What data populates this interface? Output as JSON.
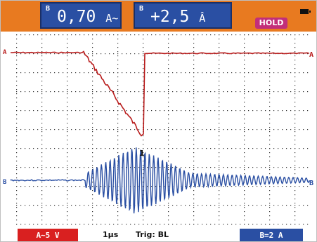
{
  "top_bar": {
    "channel_a": {
      "marker": "B",
      "value": "0,70",
      "unit": "A~"
    },
    "channel_b": {
      "marker": "B",
      "value": "+2,5",
      "unit": "Â"
    },
    "hold_label": "HOLD",
    "battery_icon": "battery-icon"
  },
  "plot": {
    "channel_a_label": "A",
    "channel_b_label": "B",
    "trigger_marker": "1",
    "colors": {
      "trace_a": "#b81b1b",
      "trace_b": "#2a4fa3",
      "grid": "#333333"
    }
  },
  "bottom_bar": {
    "channel_a_scale": "A~5 V",
    "timebase": "1µs",
    "trigger": "Trig: BL",
    "channel_b_scale": "B=2 A"
  },
  "colors": {
    "top_bar": "#e87a20",
    "readout": "#2a4fa3",
    "hold": "#c22f7a",
    "channel_a_badge": "#d92020",
    "channel_b_badge": "#2a4fa3"
  }
}
